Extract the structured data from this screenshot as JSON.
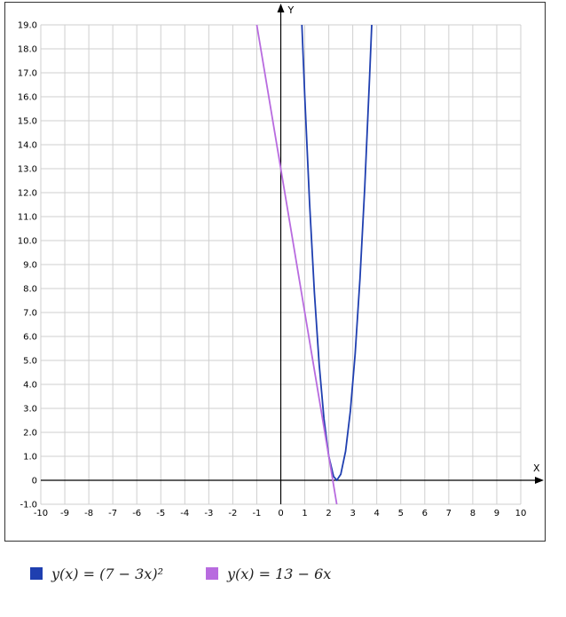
{
  "chart_data": {
    "type": "line",
    "x_axis": {
      "label": "X",
      "min": -10,
      "max": 10,
      "ticks": [
        -10,
        -9,
        -8,
        -7,
        -6,
        -5,
        -4,
        -3,
        -2,
        -1,
        0,
        1,
        2,
        3,
        4,
        5,
        6,
        7,
        8,
        9,
        10
      ]
    },
    "y_axis": {
      "label": "Y",
      "min": -1,
      "max": 19,
      "ticks": [
        "-1.0",
        "0",
        "1.0",
        "2.0",
        "3.0",
        "4.0",
        "5.0",
        "6.0",
        "7.0",
        "8.0",
        "9.0",
        "10.0",
        "11.0",
        "12.0",
        "13.0",
        "14.0",
        "15.0",
        "16.0",
        "17.0",
        "18.0",
        "19.0"
      ]
    },
    "grid": true,
    "series": [
      {
        "name": "y(x) = (7 − 3x)²",
        "expression": "(7-3x)^2",
        "color": "#1f3fb0",
        "points": [
          [
            0.88,
            19.0
          ],
          [
            1.0,
            16.0
          ],
          [
            1.2,
            11.56
          ],
          [
            1.4,
            7.84
          ],
          [
            1.6,
            4.84
          ],
          [
            1.8,
            2.56
          ],
          [
            2.0,
            1.0
          ],
          [
            2.2,
            0.16
          ],
          [
            2.333,
            0.0
          ],
          [
            2.5,
            0.25
          ],
          [
            2.7,
            1.21
          ],
          [
            2.9,
            2.89
          ],
          [
            3.1,
            5.29
          ],
          [
            3.3,
            8.41
          ],
          [
            3.5,
            12.25
          ],
          [
            3.7,
            16.81
          ],
          [
            3.79,
            19.0
          ]
        ]
      },
      {
        "name": "y(x) = 13 − 6x",
        "expression": "13-6x",
        "color": "#b86bdf",
        "points": [
          [
            -1.0,
            19.0
          ],
          [
            0.0,
            13.0
          ],
          [
            1.0,
            7.0
          ],
          [
            2.0,
            1.0
          ],
          [
            2.333,
            -1.0
          ]
        ]
      }
    ],
    "legend_position": "bottom"
  }
}
